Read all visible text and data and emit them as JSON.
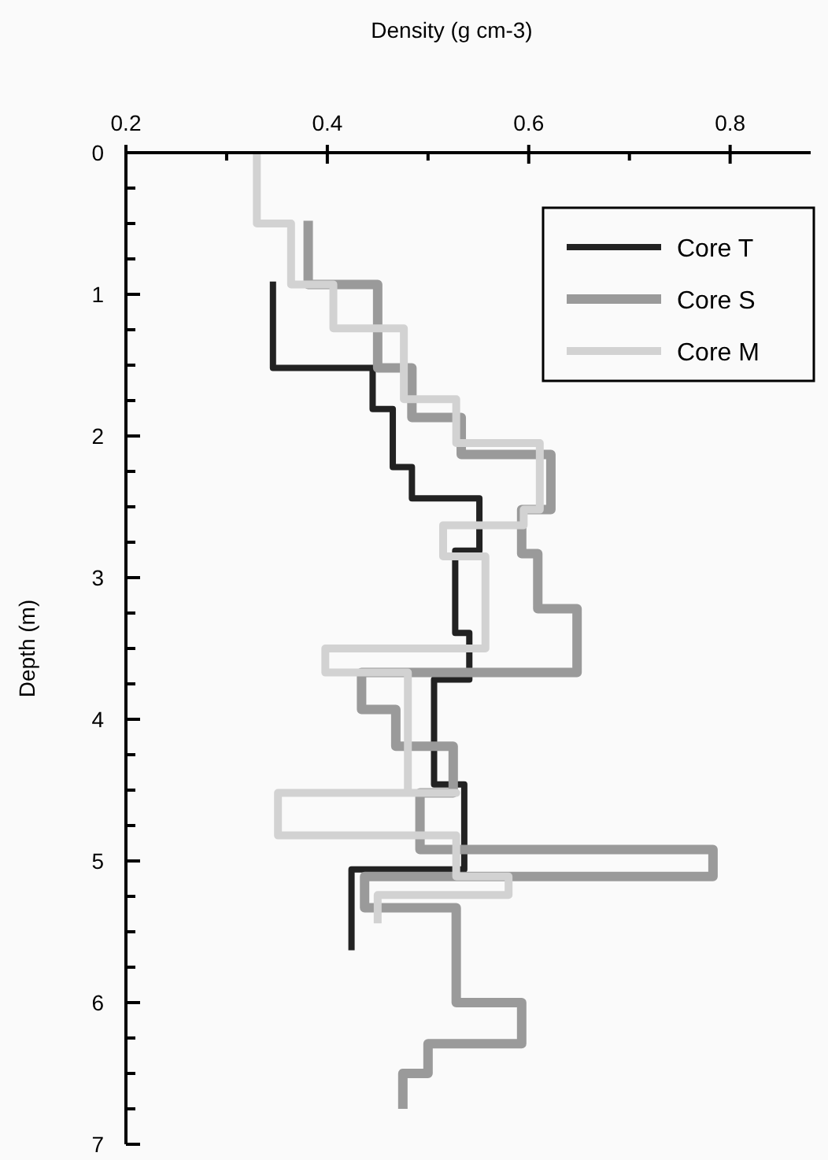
{
  "chart_data": {
    "type": "line",
    "xlabel": "Density (g cm-3)",
    "ylabel": "Depth (m)",
    "xlim": [
      0.2,
      0.88
    ],
    "ylim": [
      7,
      0
    ],
    "xticks": [
      0.2,
      {
        "value": 0.3,
        "label": null
      },
      0.4,
      {
        "value": 0.5,
        "label": null
      },
      0.6,
      {
        "value": 0.7,
        "label": null
      },
      0.8
    ],
    "yticks": [
      0,
      {
        "value": 0.25,
        "label": null
      },
      {
        "value": 0.5,
        "label": null
      },
      {
        "value": 0.75,
        "label": null
      },
      1,
      {
        "value": 1.25,
        "label": null
      },
      {
        "value": 1.5,
        "label": null
      },
      {
        "value": 1.75,
        "label": null
      },
      2,
      {
        "value": 2.25,
        "label": null
      },
      {
        "value": 2.5,
        "label": null
      },
      {
        "value": 2.75,
        "label": null
      },
      3,
      {
        "value": 3.25,
        "label": null
      },
      {
        "value": 3.5,
        "label": null
      },
      {
        "value": 3.75,
        "label": null
      },
      4,
      {
        "value": 4.25,
        "label": null
      },
      {
        "value": 4.5,
        "label": null
      },
      {
        "value": 4.75,
        "label": null
      },
      5,
      {
        "value": 5.25,
        "label": null
      },
      {
        "value": 5.5,
        "label": null
      },
      {
        "value": 5.75,
        "label": null
      },
      6,
      {
        "value": 6.25,
        "label": null
      },
      {
        "value": 6.5,
        "label": null
      },
      {
        "value": 6.75,
        "label": null
      },
      7
    ],
    "grid": false,
    "legend": "top right",
    "marker": "none",
    "line_style": "solid",
    "series": [
      {
        "name": "Core T",
        "color": "#222222",
        "x": [
          0.346,
          0.346,
          0.445,
          0.445,
          0.465,
          0.465,
          0.484,
          0.484,
          0.551,
          0.551,
          0.527,
          0.527,
          0.541,
          0.541,
          0.506,
          0.506,
          0.536,
          0.536,
          0.424,
          0.424
        ],
        "values": [
          0.91,
          1.52,
          1.52,
          1.81,
          1.81,
          2.22,
          2.22,
          2.44,
          2.44,
          2.81,
          2.81,
          3.39,
          3.39,
          3.72,
          3.72,
          4.46,
          4.46,
          5.06,
          5.06,
          5.63
        ]
      },
      {
        "name": "Core S",
        "color": "#9a9a9a",
        "x": [
          0.381,
          0.381,
          0.45,
          0.45,
          0.484,
          0.484,
          0.533,
          0.533,
          0.622,
          0.622,
          0.593,
          0.593,
          0.609,
          0.609,
          0.648,
          0.648,
          0.434,
          0.434,
          0.468,
          0.468,
          0.525,
          0.525,
          0.492,
          0.492,
          0.783,
          0.783,
          0.437,
          0.437,
          0.528,
          0.528,
          0.593,
          0.593,
          0.5,
          0.5,
          0.475,
          0.475
        ],
        "values": [
          0.48,
          0.93,
          0.93,
          1.52,
          1.52,
          1.87,
          1.87,
          2.13,
          2.13,
          2.52,
          2.52,
          2.83,
          2.83,
          3.22,
          3.22,
          3.67,
          3.67,
          3.93,
          3.93,
          4.19,
          4.19,
          4.52,
          4.52,
          4.92,
          4.92,
          5.11,
          5.11,
          5.33,
          5.33,
          6.0,
          6.0,
          6.29,
          6.29,
          6.5,
          6.5,
          6.75
        ]
      },
      {
        "name": "Core M",
        "color": "#d2d2d2",
        "x": [
          0.33,
          0.33,
          0.364,
          0.364,
          0.406,
          0.406,
          0.476,
          0.476,
          0.528,
          0.528,
          0.611,
          0.611,
          0.595,
          0.595,
          0.515,
          0.515,
          0.557,
          0.557,
          0.398,
          0.398,
          0.48,
          0.48,
          0.528,
          0.528,
          0.351,
          0.351,
          0.528,
          0.528,
          0.58,
          0.58,
          0.45,
          0.45
        ],
        "values": [
          0,
          0.5,
          0.5,
          0.93,
          0.93,
          1.24,
          1.24,
          1.74,
          1.74,
          2.05,
          2.05,
          2.52,
          2.52,
          2.63,
          2.63,
          2.85,
          2.85,
          3.5,
          3.5,
          3.67,
          3.67,
          4.52,
          4.52,
          4.52,
          4.52,
          4.82,
          4.82,
          5.11,
          5.11,
          5.24,
          5.24,
          5.44
        ]
      }
    ]
  }
}
